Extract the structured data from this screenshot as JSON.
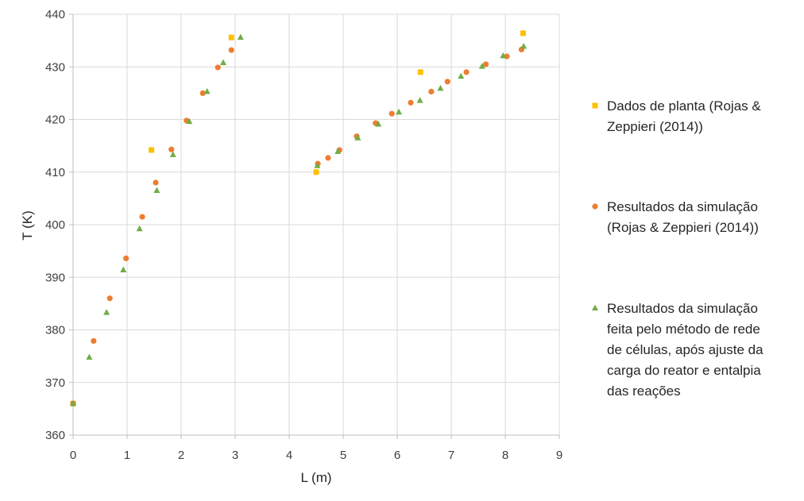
{
  "chart_data": {
    "type": "scatter",
    "title": "",
    "xlabel": "L (m)",
    "ylabel": "T (K)",
    "xlim": [
      0,
      9
    ],
    "ylim": [
      360,
      440
    ],
    "x_ticks": [
      0,
      1,
      2,
      3,
      4,
      5,
      6,
      7,
      8,
      9
    ],
    "y_ticks": [
      360,
      370,
      380,
      390,
      400,
      410,
      420,
      430,
      440
    ],
    "grid": true,
    "legend_position": "right",
    "series": [
      {
        "name": "Dados de planta (Rojas & Zeppieri (2014))",
        "legend_lines": [
          "Dados de planta (Rojas &",
          "Zeppieri (2014))"
        ],
        "marker": "square",
        "color": "#FFC000",
        "points": [
          [
            0.0,
            366.0
          ],
          [
            1.45,
            414.2
          ],
          [
            2.93,
            435.6
          ],
          [
            4.5,
            410.0
          ],
          [
            6.43,
            429.0
          ],
          [
            8.33,
            436.4
          ]
        ]
      },
      {
        "name": "Resultados da simulação (Rojas & Zeppieri (2014))",
        "legend_lines": [
          "Resultados da simulação",
          "(Rojas & Zeppieri (2014))"
        ],
        "marker": "circle",
        "color": "#ED7D31",
        "points": [
          [
            0.0,
            366.0
          ],
          [
            0.38,
            377.9
          ],
          [
            0.68,
            386.0
          ],
          [
            0.98,
            393.6
          ],
          [
            1.28,
            401.5
          ],
          [
            1.53,
            408.0
          ],
          [
            1.82,
            414.3
          ],
          [
            2.1,
            419.8
          ],
          [
            2.4,
            425.0
          ],
          [
            2.68,
            429.9
          ],
          [
            2.93,
            433.2
          ],
          [
            4.53,
            411.6
          ],
          [
            4.72,
            412.7
          ],
          [
            4.93,
            414.2
          ],
          [
            5.25,
            416.8
          ],
          [
            5.6,
            419.3
          ],
          [
            5.9,
            421.1
          ],
          [
            6.25,
            423.2
          ],
          [
            6.63,
            425.3
          ],
          [
            6.93,
            427.2
          ],
          [
            7.28,
            429.0
          ],
          [
            7.64,
            430.5
          ],
          [
            8.03,
            432.0
          ],
          [
            8.3,
            433.3
          ]
        ]
      },
      {
        "name": "Resultados da simulação feita pelo método de rede de células, após ajuste da carga do reator e entalpia das reações",
        "legend_lines": [
          "Resultados da simulação",
          "feita pelo método de rede",
          "de células, após ajuste da",
          "carga do reator e entalpia",
          "das reações"
        ],
        "marker": "triangle",
        "color": "#70AD47",
        "points": [
          [
            0.0,
            366.0
          ],
          [
            0.3,
            374.8
          ],
          [
            0.62,
            383.3
          ],
          [
            0.93,
            391.4
          ],
          [
            1.23,
            399.2
          ],
          [
            1.55,
            406.5
          ],
          [
            1.85,
            413.3
          ],
          [
            2.15,
            419.6
          ],
          [
            2.48,
            425.3
          ],
          [
            2.78,
            430.8
          ],
          [
            3.1,
            435.6
          ],
          [
            4.52,
            411.2
          ],
          [
            4.9,
            413.9
          ],
          [
            5.27,
            416.5
          ],
          [
            5.65,
            419.1
          ],
          [
            6.03,
            421.4
          ],
          [
            6.42,
            423.6
          ],
          [
            6.8,
            425.9
          ],
          [
            7.18,
            428.2
          ],
          [
            7.57,
            430.1
          ],
          [
            7.96,
            432.1
          ],
          [
            8.34,
            433.9
          ]
        ]
      }
    ]
  }
}
